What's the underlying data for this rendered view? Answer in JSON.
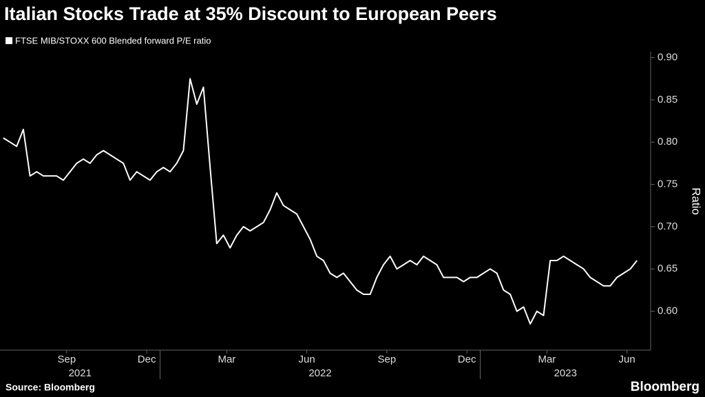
{
  "chart_data": {
    "type": "line",
    "title": "Italian Stocks Trade at 35% Discount to European Peers",
    "y_label": "Ratio",
    "source": "Source: Bloomberg",
    "brand": "Bloomberg",
    "x": [
      "2021-07",
      "2021-07",
      "2021-07",
      "2021-07",
      "2021-08",
      "2021-08",
      "2021-08",
      "2021-08",
      "2021-09",
      "2021-09",
      "2021-09",
      "2021-09",
      "2021-10",
      "2021-10",
      "2021-10",
      "2021-10",
      "2021-11",
      "2021-11",
      "2021-11",
      "2021-11",
      "2021-12",
      "2021-12",
      "2021-12",
      "2021-12",
      "2022-01",
      "2022-01",
      "2022-01",
      "2022-01",
      "2022-02",
      "2022-02",
      "2022-02",
      "2022-02",
      "2022-03",
      "2022-03",
      "2022-03",
      "2022-03",
      "2022-04",
      "2022-04",
      "2022-04",
      "2022-04",
      "2022-05",
      "2022-05",
      "2022-05",
      "2022-05",
      "2022-06",
      "2022-06",
      "2022-06",
      "2022-06",
      "2022-07",
      "2022-07",
      "2022-07",
      "2022-07",
      "2022-08",
      "2022-08",
      "2022-08",
      "2022-08",
      "2022-09",
      "2022-09",
      "2022-09",
      "2022-09",
      "2022-10",
      "2022-10",
      "2022-10",
      "2022-10",
      "2022-11",
      "2022-11",
      "2022-11",
      "2022-11",
      "2022-12",
      "2022-12",
      "2022-12",
      "2022-12",
      "2023-01",
      "2023-01",
      "2023-01",
      "2023-01",
      "2023-02",
      "2023-02",
      "2023-02",
      "2023-02",
      "2023-03",
      "2023-03",
      "2023-03",
      "2023-03",
      "2023-04",
      "2023-04",
      "2023-04",
      "2023-04",
      "2023-05",
      "2023-05",
      "2023-05",
      "2023-05",
      "2023-06",
      "2023-06",
      "2023-06",
      "2023-06"
    ],
    "series": [
      {
        "name": "FTSE MIB/STOXX 600 Blended forward P/E ratio",
        "color": "#ffffff",
        "values": [
          0.805,
          0.8,
          0.795,
          0.815,
          0.76,
          0.765,
          0.76,
          0.76,
          0.76,
          0.755,
          0.765,
          0.775,
          0.78,
          0.775,
          0.785,
          0.79,
          0.785,
          0.78,
          0.775,
          0.755,
          0.765,
          0.76,
          0.755,
          0.765,
          0.77,
          0.765,
          0.775,
          0.79,
          0.875,
          0.845,
          0.865,
          0.77,
          0.68,
          0.69,
          0.675,
          0.69,
          0.7,
          0.695,
          0.7,
          0.705,
          0.72,
          0.74,
          0.725,
          0.72,
          0.715,
          0.7,
          0.685,
          0.665,
          0.66,
          0.645,
          0.64,
          0.645,
          0.635,
          0.625,
          0.62,
          0.62,
          0.64,
          0.655,
          0.665,
          0.65,
          0.655,
          0.66,
          0.655,
          0.665,
          0.66,
          0.655,
          0.64,
          0.64,
          0.64,
          0.635,
          0.64,
          0.64,
          0.645,
          0.65,
          0.645,
          0.625,
          0.62,
          0.6,
          0.605,
          0.585,
          0.6,
          0.595,
          0.66,
          0.66,
          0.665,
          0.66,
          0.655,
          0.65,
          0.64,
          0.635,
          0.63,
          0.63,
          0.64,
          0.645,
          0.65,
          0.66
        ]
      }
    ],
    "ylim": [
      0.554,
      0.907
    ],
    "yticks": [
      {
        "value": 0.6,
        "label": "0.60"
      },
      {
        "value": 0.65,
        "label": "0.65"
      },
      {
        "value": 0.7,
        "label": "0.70"
      },
      {
        "value": 0.75,
        "label": "0.75"
      },
      {
        "value": 0.8,
        "label": "0.80"
      },
      {
        "value": 0.85,
        "label": "0.85"
      },
      {
        "value": 0.9,
        "label": "0.90"
      }
    ],
    "xticks": [
      {
        "value": "2021-09",
        "label": "Sep"
      },
      {
        "value": "2021-12",
        "label": "Dec"
      },
      {
        "value": "2022-03",
        "label": "Mar"
      },
      {
        "value": "2022-06",
        "label": "Jun"
      },
      {
        "value": "2022-09",
        "label": "Sep"
      },
      {
        "value": "2022-12",
        "label": "Dec"
      },
      {
        "value": "2023-03",
        "label": "Mar"
      },
      {
        "value": "2023-06",
        "label": "Jun"
      }
    ],
    "year_labels": [
      "2021",
      "2022",
      "2023"
    ]
  }
}
